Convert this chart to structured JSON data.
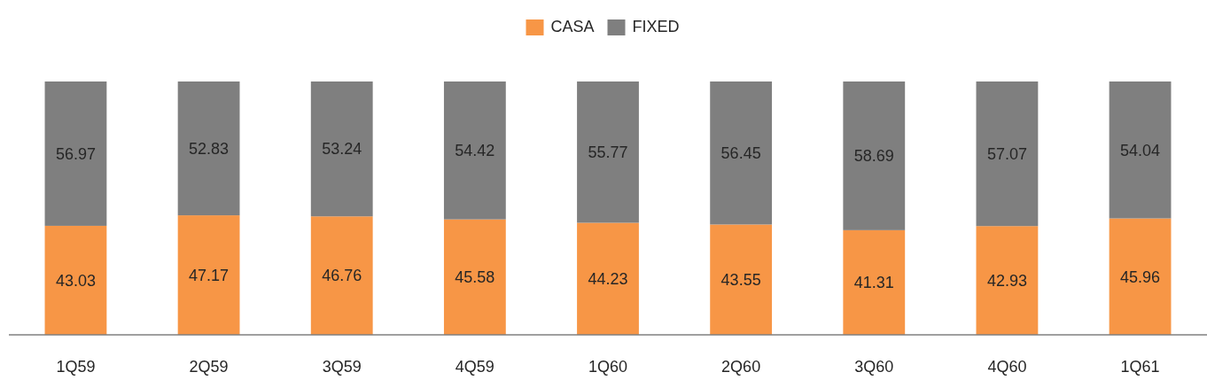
{
  "chart_data": {
    "type": "bar",
    "stacked": true,
    "data_labels": true,
    "legend": "top",
    "categories": [
      "1Q59",
      "2Q59",
      "3Q59",
      "4Q59",
      "1Q60",
      "2Q60",
      "3Q60",
      "4Q60",
      "1Q61"
    ],
    "series": [
      {
        "name": "CASA",
        "color": "#f79646",
        "values": [
          43.03,
          47.17,
          46.76,
          45.58,
          44.23,
          43.55,
          41.31,
          42.93,
          45.96
        ]
      },
      {
        "name": "FIXED",
        "color": "#7f7f7f",
        "values": [
          56.97,
          52.83,
          53.24,
          54.42,
          55.77,
          56.45,
          58.69,
          57.07,
          54.04
        ]
      }
    ]
  }
}
